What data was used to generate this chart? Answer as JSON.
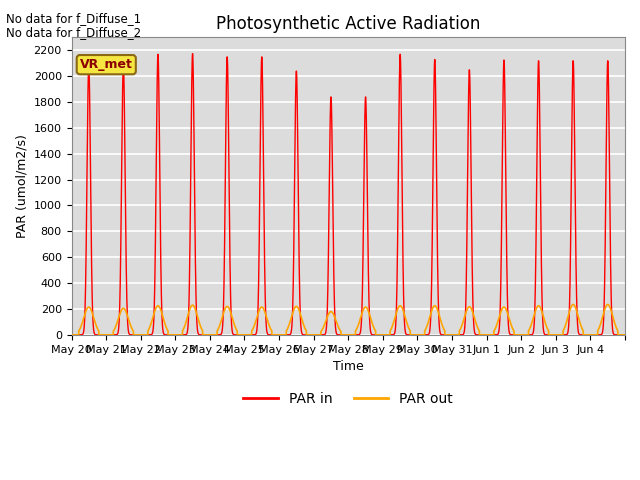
{
  "title": "Photosynthetic Active Radiation",
  "ylabel": "PAR (umol/m2/s)",
  "xlabel": "Time",
  "annotations_top_left": [
    "No data for f_Diffuse_1",
    "No data for f_Diffuse_2"
  ],
  "vr_met_label": "VR_met",
  "background_color": "#dcdcdc",
  "grid_color": "white",
  "line_par_in_color": "#ff0000",
  "line_par_out_color": "#ffa500",
  "ylim": [
    0,
    2300
  ],
  "yticks": [
    0,
    200,
    400,
    600,
    800,
    1000,
    1200,
    1400,
    1600,
    1800,
    2000,
    2200
  ],
  "num_days": 16,
  "pts_per_day": 288,
  "daily_peaks_in": [
    2090,
    2090,
    2170,
    2175,
    2150,
    2150,
    2040,
    1840,
    1840,
    2170,
    2130,
    2050,
    2125,
    2120,
    2120,
    2120
  ],
  "daily_peaks_out": [
    215,
    205,
    225,
    230,
    220,
    215,
    220,
    180,
    215,
    225,
    225,
    218,
    215,
    225,
    235,
    235
  ],
  "legend_entries": [
    "PAR in",
    "PAR out"
  ],
  "x_tick_labels": [
    "May 20",
    "May 21",
    "May 22",
    "May 23",
    "May 24",
    "May 25",
    "May 26",
    "May 27",
    "May 28",
    "May 29",
    "May 30",
    "May 31",
    "Jun 1",
    "Jun 2",
    "Jun 3",
    "Jun 4"
  ],
  "title_fontsize": 12,
  "axis_fontsize": 9,
  "tick_fontsize": 8
}
